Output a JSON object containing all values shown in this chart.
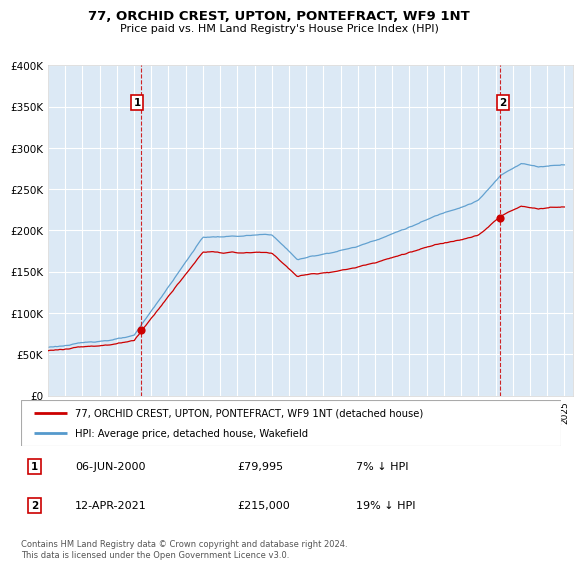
{
  "title": "77, ORCHID CREST, UPTON, PONTEFRACT, WF9 1NT",
  "subtitle": "Price paid vs. HM Land Registry's House Price Index (HPI)",
  "legend_line1": "77, ORCHID CREST, UPTON, PONTEFRACT, WF9 1NT (detached house)",
  "legend_line2": "HPI: Average price, detached house, Wakefield",
  "annotation1_label": "1",
  "annotation1_date": "06-JUN-2000",
  "annotation1_price": "£79,995",
  "annotation1_hpi": "7% ↓ HPI",
  "annotation2_label": "2",
  "annotation2_date": "12-APR-2021",
  "annotation2_price": "£215,000",
  "annotation2_hpi": "19% ↓ HPI",
  "footer": "Contains HM Land Registry data © Crown copyright and database right 2024.\nThis data is licensed under the Open Government Licence v3.0.",
  "price_line_color": "#cc0000",
  "hpi_line_color": "#5599cc",
  "vline_color": "#cc0000",
  "bg_color": "#dce9f5",
  "annotation_box_color": "#cc0000",
  "ylim": [
    0,
    400000
  ],
  "yticks": [
    0,
    50000,
    100000,
    150000,
    200000,
    250000,
    300000,
    350000,
    400000
  ],
  "sale1_x": 2000.43,
  "sale1_y": 79995,
  "sale2_x": 2021.28,
  "sale2_y": 215000,
  "xmin": 1995,
  "xmax": 2025.5
}
